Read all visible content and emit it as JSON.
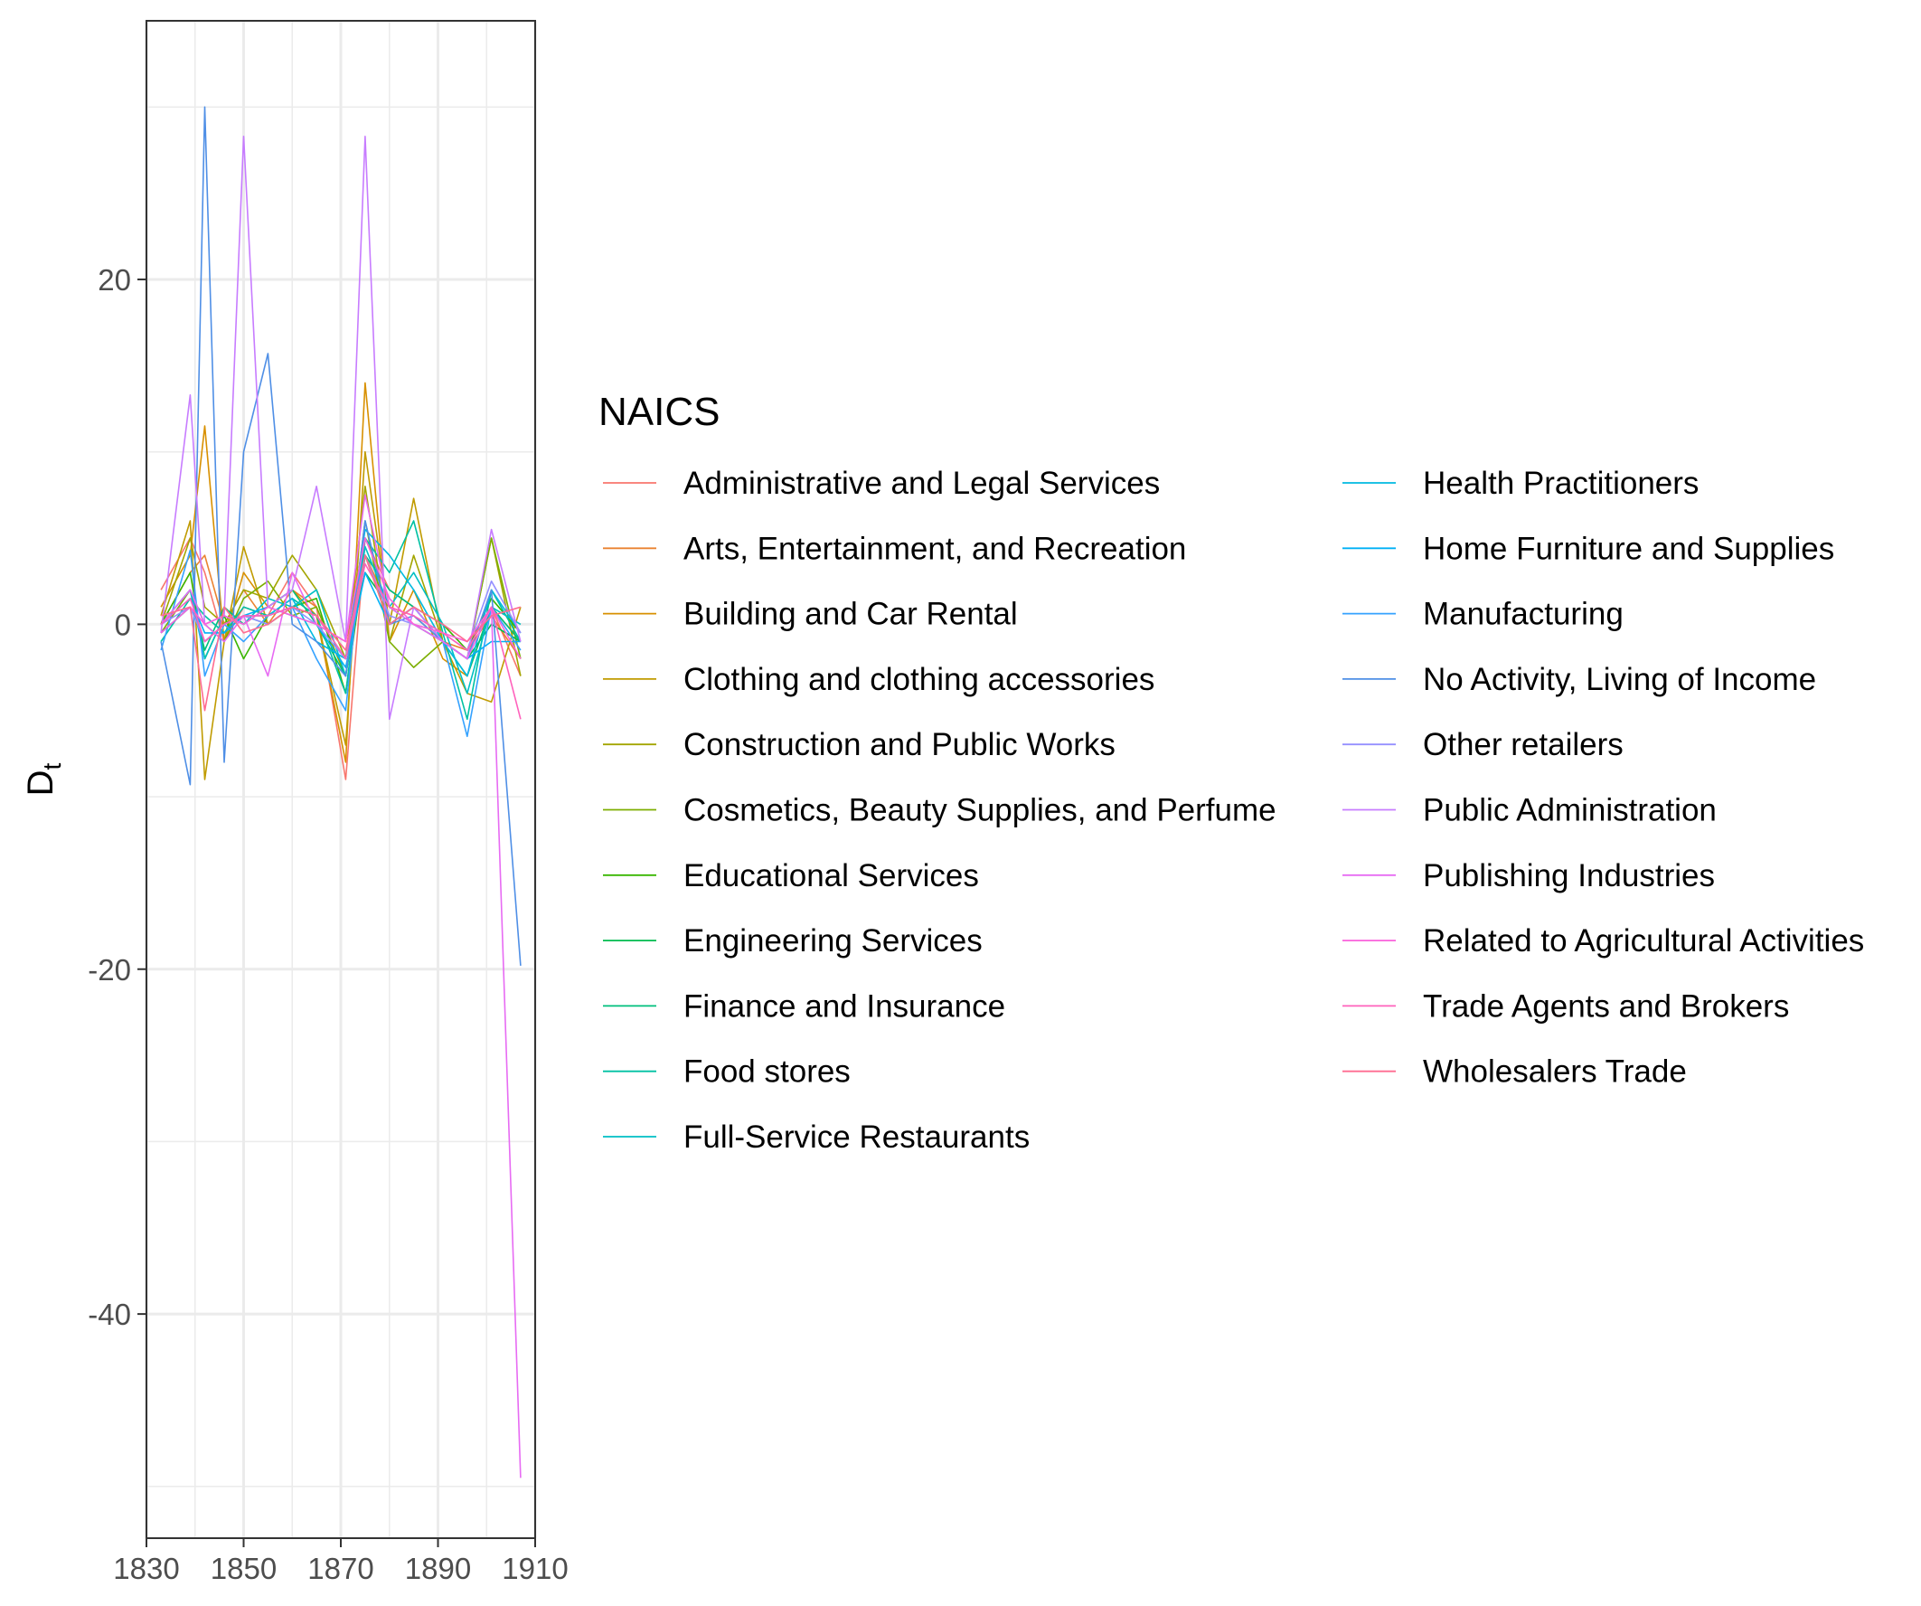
{
  "chart_data": {
    "type": "line",
    "title": "",
    "xlabel": "",
    "ylabel": "D",
    "ylabel_subscript": "t",
    "xlim": [
      1830,
      1910
    ],
    "ylim": [
      -53,
      35
    ],
    "x_ticks": [
      1830,
      1850,
      1870,
      1890,
      1910
    ],
    "y_ticks": [
      20,
      0,
      -20,
      -40
    ],
    "x_tick_labels": [
      "1830",
      "1850",
      "1870",
      "1890",
      "1910"
    ],
    "y_tick_labels": [
      "20",
      "0",
      "-20",
      "-40"
    ],
    "grid": true,
    "legend_title": "NAICS",
    "legend_position": "right",
    "x": [
      1833,
      1839,
      1842,
      1846,
      1850,
      1855,
      1860,
      1865,
      1871,
      1875,
      1880,
      1885,
      1891,
      1896,
      1901,
      1907
    ],
    "series": [
      {
        "name": "Administrative and Legal Services",
        "color": "#F8766D",
        "values": [
          2.0,
          5.0,
          3.0,
          -1.0,
          1.0,
          0.5,
          3.0,
          1.0,
          -9.0,
          5.0,
          2.0,
          1.0,
          -1.0,
          -2.0,
          1.0,
          -3.0
        ]
      },
      {
        "name": "Arts, Entertainment, and Recreation",
        "color": "#EA8331",
        "values": [
          0.0,
          3.0,
          4.0,
          0.0,
          2.0,
          0.0,
          2.0,
          1.0,
          -3.0,
          4.0,
          1.0,
          0.5,
          -1.0,
          -1.5,
          0.5,
          -2.0
        ]
      },
      {
        "name": "Building and Car Rental",
        "color": "#D89000",
        "values": [
          1.0,
          4.0,
          11.5,
          -1.0,
          3.0,
          1.0,
          2.0,
          0.5,
          -8.0,
          14.0,
          -1.0,
          2.0,
          -2.0,
          -3.0,
          1.0,
          -1.0
        ]
      },
      {
        "name": "Clothing and clothing accessories",
        "color": "#C09B00",
        "values": [
          0.5,
          6.0,
          -9.0,
          -1.0,
          4.5,
          0.0,
          1.0,
          0.5,
          -7.0,
          10.0,
          0.0,
          7.3,
          -1.0,
          -4.0,
          -4.5,
          1.0
        ]
      },
      {
        "name": "Construction and Public Works",
        "color": "#A3A500",
        "values": [
          0.0,
          5.0,
          1.0,
          0.0,
          2.0,
          1.5,
          4.0,
          2.0,
          -2.0,
          8.0,
          -1.0,
          4.0,
          -1.0,
          -2.0,
          5.0,
          -3.0
        ]
      },
      {
        "name": "Cosmetics, Beauty Supplies, and Perfume",
        "color": "#7CAE00",
        "values": [
          -0.5,
          2.0,
          0.0,
          -1.0,
          1.5,
          2.5,
          0.5,
          1.0,
          -3.0,
          6.0,
          -1.0,
          -2.5,
          -1.0,
          -2.0,
          5.0,
          -2.0
        ]
      },
      {
        "name": "Educational Services",
        "color": "#39B600",
        "values": [
          0.0,
          3.0,
          -2.0,
          0.5,
          -2.0,
          0.5,
          1.0,
          1.5,
          -4.0,
          4.0,
          0.0,
          1.0,
          0.0,
          -1.5,
          1.5,
          -0.5
        ]
      },
      {
        "name": "Engineering Services",
        "color": "#00BB4E",
        "values": [
          -0.5,
          1.0,
          -1.0,
          0.0,
          0.5,
          0.0,
          1.0,
          0.5,
          -2.0,
          3.0,
          1.0,
          0.0,
          -1.0,
          -2.0,
          0.0,
          -1.0
        ]
      },
      {
        "name": "Finance and Insurance",
        "color": "#00BF7D",
        "values": [
          0.0,
          2.0,
          -1.5,
          1.0,
          0.0,
          1.0,
          2.0,
          0.0,
          -3.0,
          4.0,
          2.0,
          1.0,
          -1.0,
          -3.0,
          1.0,
          -1.0
        ]
      },
      {
        "name": "Food stores",
        "color": "#00C1A3",
        "values": [
          -1.0,
          1.5,
          0.5,
          -0.5,
          1.0,
          0.5,
          1.5,
          0.5,
          -4.0,
          5.0,
          3.0,
          6.0,
          -0.5,
          -5.5,
          2.0,
          -1.0
        ]
      },
      {
        "name": "Full-Service Restaurants",
        "color": "#00BFC4",
        "values": [
          0.0,
          2.0,
          -2.0,
          0.5,
          0.0,
          1.5,
          1.0,
          2.0,
          -3.0,
          4.5,
          1.0,
          3.0,
          0.0,
          -4.0,
          1.0,
          0.0
        ]
      },
      {
        "name": "Health Practitioners",
        "color": "#00BAE0",
        "values": [
          -0.5,
          1.0,
          -1.0,
          0.0,
          0.5,
          0.5,
          1.5,
          -1.0,
          -2.0,
          5.5,
          4.0,
          2.0,
          -1.0,
          -3.0,
          2.0,
          -0.5
        ]
      },
      {
        "name": "Home Furniture and Supplies",
        "color": "#00B0F6",
        "values": [
          0.0,
          1.5,
          -0.5,
          -0.5,
          0.5,
          1.0,
          0.5,
          0.0,
          -2.5,
          3.0,
          0.0,
          1.0,
          -1.0,
          -2.0,
          -1.0,
          -1.0
        ]
      },
      {
        "name": "Manufacturing",
        "color": "#35A2FF",
        "values": [
          -1.5,
          4.3,
          -3.0,
          0.0,
          -1.0,
          0.5,
          1.0,
          -2.0,
          -5.0,
          6.0,
          0.0,
          1.0,
          -1.0,
          -6.5,
          1.0,
          -1.5
        ]
      },
      {
        "name": "No Activity, Living of Income",
        "color": "#4F8FE6",
        "values": [
          -1.0,
          -9.3,
          30.0,
          -8.0,
          10.0,
          15.7,
          0.0,
          -1.0,
          -3.0,
          6.0,
          0.0,
          0.5,
          -1.0,
          -2.0,
          2.0,
          -19.8
        ]
      },
      {
        "name": "Other retailers",
        "color": "#9590FF",
        "values": [
          0.0,
          1.0,
          -1.0,
          0.0,
          0.5,
          0.0,
          1.0,
          0.0,
          -2.0,
          4.0,
          0.5,
          0.0,
          -0.5,
          -1.5,
          2.5,
          -0.5
        ]
      },
      {
        "name": "Public Administration",
        "color": "#C77CFF",
        "values": [
          -0.5,
          13.3,
          0.0,
          0.5,
          28.3,
          1.0,
          2.0,
          8.0,
          -1.0,
          28.3,
          -5.5,
          1.0,
          -1.0,
          -2.0,
          5.5,
          -1.0
        ]
      },
      {
        "name": "Publishing Industries",
        "color": "#E76BF3",
        "values": [
          0.0,
          2.0,
          0.0,
          -1.0,
          0.5,
          -3.0,
          3.0,
          0.0,
          -1.0,
          7.5,
          1.0,
          0.0,
          -1.0,
          -2.0,
          1.0,
          -49.5
        ]
      },
      {
        "name": "Related to Agricultural Activities",
        "color": "#FA62DB",
        "values": [
          -0.5,
          1.0,
          0.0,
          0.5,
          0.0,
          1.0,
          0.5,
          0.0,
          -1.0,
          5.0,
          1.5,
          0.0,
          -0.5,
          -1.0,
          1.0,
          -2.0
        ]
      },
      {
        "name": "Trade Agents and Brokers",
        "color": "#FF62BC",
        "values": [
          0.0,
          1.5,
          -1.0,
          0.0,
          0.5,
          0.5,
          1.0,
          0.5,
          -2.0,
          3.5,
          1.0,
          0.5,
          -0.5,
          -1.5,
          1.0,
          -5.5
        ]
      },
      {
        "name": "Wholesalers Trade",
        "color": "#FF6C91",
        "values": [
          0.5,
          1.0,
          -5.0,
          1.0,
          -0.5,
          0.0,
          1.0,
          0.5,
          -1.5,
          4.0,
          0.0,
          1.0,
          0.0,
          -1.0,
          0.5,
          1.0
        ]
      }
    ]
  }
}
